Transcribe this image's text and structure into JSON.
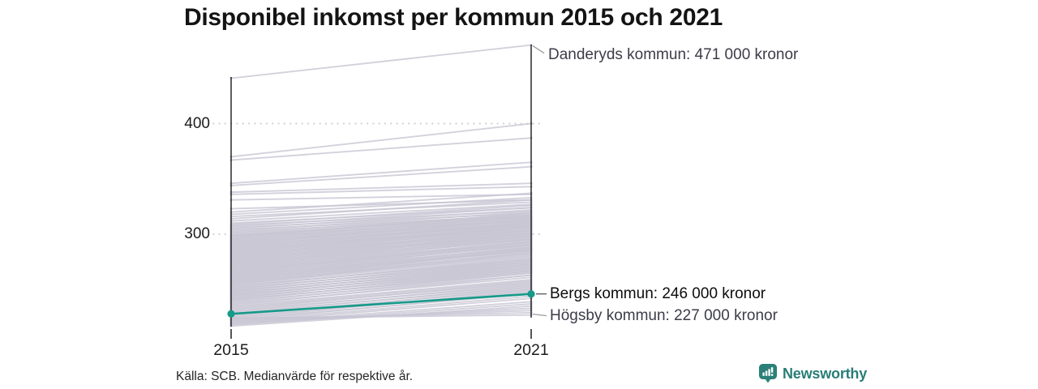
{
  "header": {
    "title": "Disponibel inkomst per kommun 2015 och 2021"
  },
  "chart_data": {
    "type": "line",
    "subtype": "slope-chart",
    "title": "Disponibel inkomst per kommun 2015 och 2021",
    "x": [
      2015,
      2021
    ],
    "x_labels": [
      "2015",
      "2021"
    ],
    "yticks": [
      400,
      300
    ],
    "ytick_labels": [
      "400",
      "300"
    ],
    "ylim": [
      215,
      480
    ],
    "unit": "tusen kronor",
    "grid": "dotted horizontal at yticks",
    "line_color": "#c8c5d3",
    "axis_color": "#1a1a1a",
    "highlight": {
      "name": "Bergs kommun",
      "values": [
        228,
        246
      ],
      "color": "#169a8a"
    },
    "annotations": [
      {
        "label": "Danderyds kommun: 471 000 kronor",
        "value": 471,
        "x": 2021
      },
      {
        "label": "Bergs kommun: 246 000 kronor",
        "value": 246,
        "x": 2021
      },
      {
        "label": "Högsby kommun: 227 000 kronor",
        "value": 227,
        "x": 2021
      }
    ],
    "background_lines": [
      [
        441,
        471
      ],
      [
        370,
        400
      ],
      [
        367,
        387
      ],
      [
        346,
        365
      ],
      [
        344,
        361
      ],
      [
        338,
        346
      ],
      [
        336,
        343
      ],
      [
        331,
        336
      ],
      [
        323,
        331
      ],
      [
        320,
        337
      ],
      [
        318,
        333
      ],
      [
        316,
        329
      ],
      [
        314,
        331
      ],
      [
        312,
        327
      ],
      [
        310,
        324
      ],
      [
        309,
        326
      ],
      [
        308,
        321
      ],
      [
        307,
        324
      ],
      [
        306,
        319
      ],
      [
        305,
        322
      ],
      [
        304,
        317
      ],
      [
        303,
        320
      ],
      [
        302,
        316
      ],
      [
        301,
        318
      ],
      [
        300,
        315
      ],
      [
        299,
        317
      ],
      [
        298,
        313
      ],
      [
        297,
        319
      ],
      [
        296,
        312
      ],
      [
        295,
        316
      ],
      [
        294,
        310
      ],
      [
        293,
        314
      ],
      [
        292,
        309
      ],
      [
        291,
        313
      ],
      [
        290,
        308
      ],
      [
        289,
        311
      ],
      [
        288,
        306
      ],
      [
        287,
        310
      ],
      [
        286,
        305
      ],
      [
        285,
        308
      ],
      [
        284,
        304
      ],
      [
        283,
        307
      ],
      [
        282,
        302
      ],
      [
        281,
        306
      ],
      [
        280,
        301
      ],
      [
        279,
        304
      ],
      [
        278,
        299
      ],
      [
        277,
        303
      ],
      [
        276,
        298
      ],
      [
        275,
        301
      ],
      [
        274,
        296
      ],
      [
        273,
        300
      ],
      [
        272,
        295
      ],
      [
        271,
        298
      ],
      [
        270,
        293
      ],
      [
        269,
        296
      ],
      [
        268,
        291
      ],
      [
        267,
        294
      ],
      [
        266,
        290
      ],
      [
        265,
        293
      ],
      [
        264,
        288
      ],
      [
        263,
        291
      ],
      [
        262,
        286
      ],
      [
        261,
        289
      ],
      [
        260,
        285
      ],
      [
        259,
        287
      ],
      [
        258,
        283
      ],
      [
        257,
        286
      ],
      [
        256,
        281
      ],
      [
        255,
        284
      ],
      [
        254,
        280
      ],
      [
        253,
        277
      ],
      [
        252,
        279
      ],
      [
        251,
        275
      ],
      [
        250,
        277
      ],
      [
        249,
        273
      ],
      [
        248,
        275
      ],
      [
        247,
        271
      ],
      [
        246,
        273
      ],
      [
        245,
        269
      ],
      [
        244,
        271
      ],
      [
        243,
        267
      ],
      [
        242,
        269
      ],
      [
        241,
        265
      ],
      [
        240,
        267
      ],
      [
        239,
        263
      ],
      [
        238,
        265
      ],
      [
        237,
        261
      ],
      [
        236,
        263
      ],
      [
        235,
        259
      ],
      [
        298.5,
        315
      ],
      [
        296.5,
        314
      ],
      [
        294.5,
        312
      ],
      [
        292.5,
        311
      ],
      [
        290.5,
        309
      ],
      [
        288.5,
        308
      ],
      [
        286.5,
        307
      ],
      [
        284.5,
        306
      ],
      [
        282.5,
        304
      ],
      [
        280.5,
        303
      ],
      [
        278.5,
        301
      ],
      [
        276.5,
        300
      ],
      [
        274.5,
        298
      ],
      [
        272.5,
        297
      ],
      [
        270.5,
        295
      ],
      [
        268.5,
        293
      ],
      [
        266.5,
        292
      ],
      [
        264.5,
        290
      ],
      [
        262.5,
        288
      ],
      [
        260.5,
        287
      ],
      [
        258.5,
        285
      ],
      [
        256.5,
        283
      ],
      [
        254.5,
        282
      ],
      [
        252.5,
        278
      ],
      [
        250.5,
        276
      ],
      [
        248.5,
        274
      ],
      [
        246.5,
        272
      ],
      [
        244.5,
        270
      ],
      [
        242.5,
        268
      ],
      [
        240.5,
        266
      ],
      [
        234,
        258
      ],
      [
        233,
        256
      ],
      [
        232,
        257
      ],
      [
        231,
        254
      ],
      [
        230,
        255
      ],
      [
        229,
        252
      ],
      [
        228,
        253
      ],
      [
        227,
        250
      ],
      [
        226,
        251
      ],
      [
        225,
        248
      ],
      [
        224,
        249
      ],
      [
        223,
        246
      ],
      [
        222,
        247
      ],
      [
        221,
        244
      ],
      [
        220,
        242
      ],
      [
        219,
        239
      ],
      [
        218,
        237
      ],
      [
        217,
        235
      ],
      [
        219.5,
        233
      ],
      [
        221.5,
        231
      ],
      [
        223.5,
        229
      ],
      [
        224,
        227
      ]
    ],
    "legend": "none"
  },
  "footer": {
    "source": "Källa: SCB. Medianvärde för respektive år.",
    "brand": "Newsworthy"
  },
  "icons": {
    "logo": "newsworthy-bar-chart-speech-bubble",
    "logo_color": "#2a8078"
  }
}
